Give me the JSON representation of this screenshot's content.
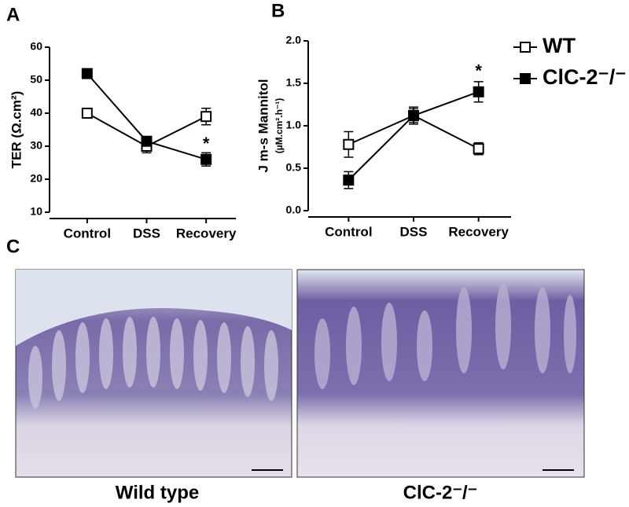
{
  "chart_data": [
    {
      "type": "line",
      "panel_label": "A",
      "y_label": "TER (Ω.cm²)",
      "categories": [
        "Control",
        "DSS",
        "Recovery"
      ],
      "series": [
        {
          "name": "WT",
          "color": "#000000",
          "marker": "open-square",
          "values": [
            40,
            30,
            39
          ],
          "errors": [
            1,
            2,
            2.5
          ]
        },
        {
          "name": "ClC-2⁻/⁻",
          "color": "#000000",
          "marker": "filled-square",
          "values": [
            52,
            31.5,
            26
          ],
          "errors": [
            0.5,
            1,
            2
          ]
        }
      ],
      "ylim": [
        10,
        60
      ],
      "yticks": [
        10,
        20,
        30,
        40,
        50,
        60
      ],
      "annotation": "*"
    },
    {
      "type": "line",
      "panel_label": "B",
      "y_label": "J m-s Mannitol",
      "y_label_units": "(µM.cm².h⁻¹)",
      "categories": [
        "Control",
        "DSS",
        "Recovery"
      ],
      "series": [
        {
          "name": "WT",
          "color": "#000000",
          "marker": "open-square",
          "values": [
            0.78,
            1.12,
            0.73
          ],
          "errors": [
            0.15,
            0.08,
            0.07
          ]
        },
        {
          "name": "ClC-2⁻/⁻",
          "color": "#000000",
          "marker": "filled-square",
          "values": [
            0.36,
            1.12,
            1.4
          ],
          "errors": [
            0.1,
            0.1,
            0.12
          ]
        }
      ],
      "ylim": [
        0,
        2
      ],
      "yticks": [
        {
          "value": 0,
          "label": "0.0"
        },
        0.5,
        {
          "value": 1,
          "label": "1.0"
        },
        1.5,
        {
          "value": 2,
          "label": "2.0"
        }
      ],
      "annotation": "*",
      "legend": "right"
    }
  ],
  "histology": {
    "panel_label": "C",
    "captions": [
      "Wild type",
      "ClC-2⁻/⁻"
    ]
  }
}
